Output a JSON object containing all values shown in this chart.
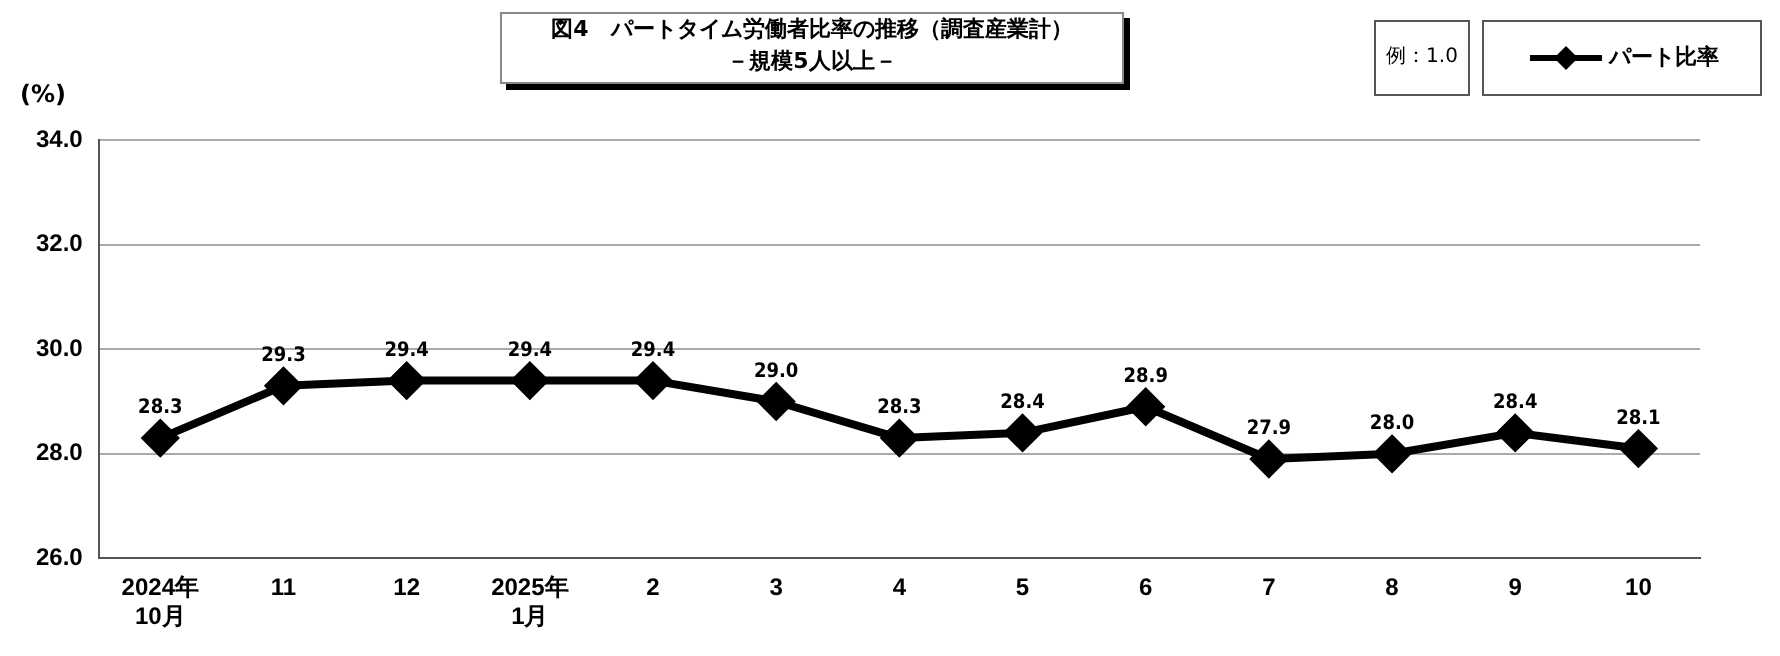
{
  "chart_data": {
    "type": "line",
    "title": "図4　パートタイム労働者比率の推移（調査産業計）",
    "subtitle": "－規模5人以上－",
    "ylabel": "(%)",
    "annotations": [
      "例：1.0"
    ],
    "categories": [
      "2024年\n10月",
      "11",
      "12",
      "2025年\n1月",
      "2",
      "3",
      "4",
      "5",
      "6",
      "7",
      "8",
      "9",
      "10"
    ],
    "series": [
      {
        "name": "パート比率",
        "color": "#000000",
        "values": [
          28.3,
          29.3,
          29.4,
          29.4,
          29.4,
          29.0,
          28.3,
          28.4,
          28.9,
          27.9,
          28.0,
          28.4,
          28.1
        ],
        "value_labels": [
          "28.3",
          "29.3",
          "29.4",
          "29.4",
          "29.4",
          "29.0",
          "28.3",
          "28.4",
          "28.9",
          "27.9",
          "28.0",
          "28.4",
          "28.1"
        ]
      }
    ],
    "ylim": [
      26,
      34
    ],
    "yticks": [
      {
        "value": 26,
        "label": "26.0"
      },
      {
        "value": 28,
        "label": "28.0"
      },
      {
        "value": 30,
        "label": "30.0"
      },
      {
        "value": 32,
        "label": "32.0"
      },
      {
        "value": 34,
        "label": "34.0"
      }
    ],
    "grid": "y",
    "legend": "top right",
    "marker": "diamond",
    "line_style": "solid"
  }
}
